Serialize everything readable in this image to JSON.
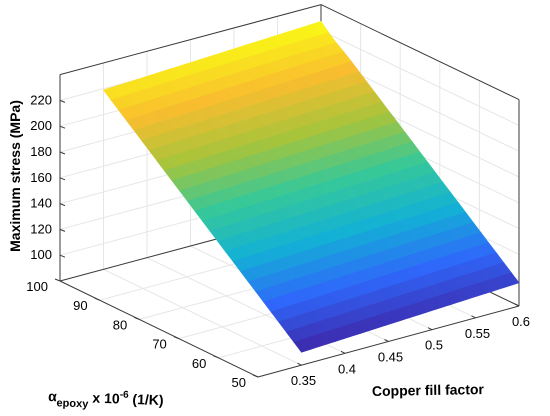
{
  "chart_data": {
    "type": "surface",
    "zlabel": "Maximum stress (MPa)",
    "xlabel": {
      "symbol": "α",
      "subscript": "epoxy",
      "rest": " x 10",
      "exponent": "-6",
      "unit": " (1/K)"
    },
    "ylabel": "Copper fill factor",
    "x_ticks": [
      "50",
      "60",
      "70",
      "80",
      "90",
      "100"
    ],
    "y_ticks": [
      "0.35",
      "0.4",
      "0.45",
      "0.5",
      "0.55",
      "0.6"
    ],
    "z_ticks": [
      "100",
      "120",
      "140",
      "160",
      "180",
      "200",
      "220"
    ],
    "xlim": [
      50,
      100
    ],
    "ylim": [
      0.3,
      0.6
    ],
    "zlim": [
      80,
      240
    ],
    "grid": true,
    "box": true,
    "colormap": [
      "#3e26a8",
      "#2f67fa",
      "#13b1d5",
      "#37c898",
      "#a7c43b",
      "#f9bd2f",
      "#f9fb14"
    ],
    "surface": {
      "x": [
        50,
        100
      ],
      "y": [
        0.35,
        0.6
      ],
      "z_corners": {
        "x50_y0.35": 90,
        "x100_y0.35": 219,
        "x50_y0.6": 98,
        "x100_y0.6": 227
      },
      "ridge": {
        "x": 75,
        "y": 0.6,
        "z": 211
      }
    }
  }
}
